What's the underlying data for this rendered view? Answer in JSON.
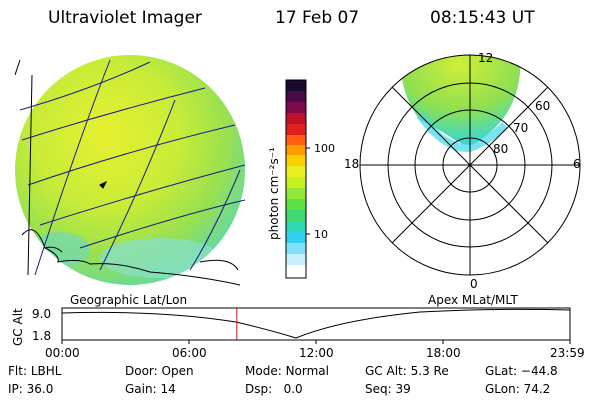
{
  "header": {
    "instrument": "Ultraviolet Imager",
    "date": "17 Feb 07",
    "time": "08:15:43 UT"
  },
  "colorbar": {
    "unit_label": "photon cm⁻²s⁻¹",
    "ticks": [
      "100",
      "10"
    ],
    "colors": [
      "#1a0a2e",
      "#7a0a4a",
      "#d0102a",
      "#ff4010",
      "#ff9a00",
      "#ffe000",
      "#c8f020",
      "#70e040",
      "#40d8a0",
      "#30d0f0",
      "#a0e8f8",
      "#ffffff"
    ]
  },
  "polar_plot": {
    "title": "Apex MLat/MLT",
    "mlt_labels": [
      "12",
      "18",
      "6",
      "0"
    ],
    "lat_labels": [
      "60",
      "70",
      "80"
    ]
  },
  "geo_plot": {
    "title": "Geographic Lat/Lon"
  },
  "altitude_strip": {
    "ylabel": "GC Alt",
    "yticks": [
      "9.0",
      "1.8"
    ],
    "time_ticks": [
      "00:00",
      "06:00",
      "12:00",
      "18:00",
      "23:59"
    ],
    "marker_time_hours": 8.26
  },
  "status": {
    "row1": [
      {
        "key": "Flt:",
        "value": "LBHL"
      },
      {
        "key": "Door:",
        "value": "Open"
      },
      {
        "key": "Mode:",
        "value": "Normal"
      },
      {
        "key": "GC Alt:",
        "value": "5.3 Re"
      },
      {
        "key": "GLat:",
        "value": "−44.8"
      }
    ],
    "row2": [
      {
        "key": "IP:",
        "value": "36.0"
      },
      {
        "key": "Gain:",
        "value": "14"
      },
      {
        "key": "Dsp:",
        "value": "0.0"
      },
      {
        "key": "Seq:",
        "value": "39"
      },
      {
        "key": "GLon:",
        "value": "74.2"
      }
    ]
  }
}
